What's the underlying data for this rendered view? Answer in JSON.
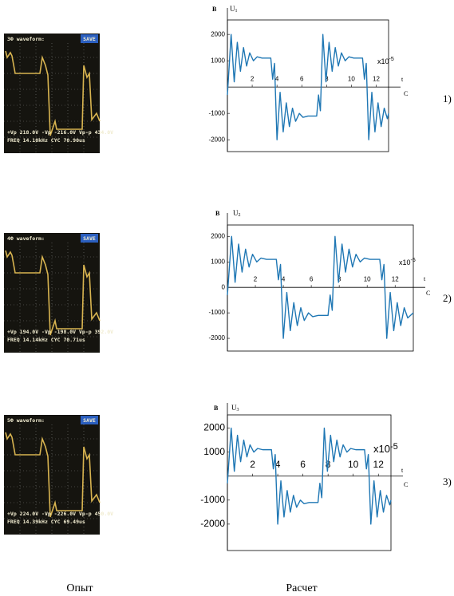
{
  "scopes": [
    {
      "title": "3Ф waveform:",
      "button": "SAVE",
      "line1": "+Vp 218.0V -Vp -216.0V Vp-p 434.0V",
      "line2": "FREQ 14.10kHz CYC 70.90us"
    },
    {
      "title": "4Ф waveform:",
      "button": "SAVE",
      "line1": "+Vp 194.0V -Vp -198.0V Vp-p 392.0V",
      "line2": "FREQ 14.14kHz CYC 70.71us"
    },
    {
      "title": "5Ф waveform:",
      "button": "SAVE",
      "line1": "+Vp 224.0V -Vp -226.0V Vp-p 450.0V",
      "line2": "FREQ 14.39kHz CYC 69.49us"
    }
  ],
  "row_labels": [
    "1)",
    "2)",
    "3)"
  ],
  "captions": {
    "left": "Опыт",
    "right": "Расчет"
  },
  "chart_data": [
    {
      "type": "line",
      "ylabel_unit": "B",
      "ylabel": "U",
      "ylabel_sub": "1",
      "xlabel": "t",
      "xunit": "C",
      "multiplier": "x10",
      "multiplier_exp": "-5",
      "xlim": [
        0,
        13
      ],
      "ylim": [
        -2450,
        2550
      ],
      "xticks": [
        2,
        4,
        6,
        8,
        10,
        12
      ],
      "yticks": [
        -2000,
        -1000,
        1000,
        2000
      ],
      "color": "#1f77b4",
      "x": [
        0,
        0.3,
        0.55,
        0.8,
        1.05,
        1.3,
        1.55,
        1.8,
        2.1,
        2.4,
        2.8,
        3.5,
        3.65,
        3.8,
        4.0,
        4.25,
        4.5,
        4.75,
        5.0,
        5.25,
        5.5,
        5.8,
        6.1,
        6.5,
        7.2,
        7.35,
        7.5,
        7.7,
        7.95,
        8.2,
        8.45,
        8.7,
        8.95,
        9.2,
        9.5,
        9.8,
        10.2,
        10.9,
        11.05,
        11.2,
        11.4,
        11.65,
        11.9,
        12.15,
        12.4,
        12.65,
        12.9,
        13.0
      ],
      "values": [
        -300,
        2000,
        200,
        1700,
        600,
        1500,
        800,
        1300,
        1000,
        1150,
        1100,
        1100,
        300,
        900,
        -2000,
        -200,
        -1700,
        -600,
        -1500,
        -800,
        -1300,
        -1000,
        -1150,
        -1100,
        -1100,
        -300,
        -900,
        2000,
        200,
        1700,
        600,
        1500,
        800,
        1300,
        1000,
        1150,
        1100,
        1100,
        300,
        900,
        -2000,
        -200,
        -1700,
        -600,
        -1500,
        -800,
        -1200,
        -1000
      ]
    },
    {
      "type": "line",
      "ylabel_unit": "B",
      "ylabel": "U",
      "ylabel_sub": "2",
      "xlabel": "t",
      "xunit": "C",
      "multiplier": "x10",
      "multiplier_exp": "-5",
      "xlim": [
        0,
        13.3
      ],
      "ylim": [
        -2500,
        2450
      ],
      "xticks": [
        2,
        4,
        6,
        8,
        10,
        12
      ],
      "yticks": [
        -2000,
        -1000,
        0,
        1000,
        2000
      ],
      "color": "#1f77b4",
      "x": [
        0,
        0.3,
        0.55,
        0.8,
        1.05,
        1.3,
        1.55,
        1.8,
        2.1,
        2.4,
        2.8,
        3.5,
        3.65,
        3.8,
        4.0,
        4.25,
        4.5,
        4.75,
        5.0,
        5.25,
        5.5,
        5.8,
        6.1,
        6.5,
        7.2,
        7.35,
        7.5,
        7.7,
        7.95,
        8.2,
        8.45,
        8.7,
        8.95,
        9.2,
        9.5,
        9.8,
        10.2,
        10.9,
        11.05,
        11.2,
        11.4,
        11.65,
        11.9,
        12.15,
        12.4,
        12.65,
        12.9,
        13.3
      ],
      "values": [
        -300,
        2000,
        200,
        1700,
        600,
        1500,
        800,
        1300,
        1000,
        1150,
        1100,
        1100,
        300,
        900,
        -2000,
        -200,
        -1700,
        -600,
        -1500,
        -800,
        -1300,
        -1000,
        -1150,
        -1100,
        -1100,
        -300,
        -900,
        2000,
        200,
        1700,
        600,
        1500,
        800,
        1300,
        1000,
        1150,
        1100,
        1100,
        300,
        900,
        -2000,
        -200,
        -1700,
        -600,
        -1500,
        -800,
        -1200,
        -1000
      ]
    },
    {
      "type": "line",
      "ylabel_unit": "B",
      "ylabel": "U",
      "ylabel_sub": "3",
      "xlabel": "t",
      "xunit": "C",
      "multiplier": "x10",
      "multiplier_exp": "-5",
      "xlim": [
        0,
        13
      ],
      "ylim": [
        -3100,
        2550
      ],
      "xticks": [
        2,
        4,
        6,
        8,
        10,
        12
      ],
      "yticks": [
        -2000,
        -1000,
        1000,
        2000
      ],
      "color": "#1f77b4",
      "x": [
        0,
        0.3,
        0.55,
        0.8,
        1.05,
        1.3,
        1.55,
        1.8,
        2.1,
        2.4,
        2.8,
        3.5,
        3.65,
        3.8,
        4.0,
        4.25,
        4.5,
        4.75,
        5.0,
        5.25,
        5.5,
        5.8,
        6.1,
        6.5,
        7.2,
        7.35,
        7.5,
        7.7,
        7.95,
        8.2,
        8.45,
        8.7,
        8.95,
        9.2,
        9.5,
        9.8,
        10.2,
        10.9,
        11.05,
        11.2,
        11.4,
        11.65,
        11.9,
        12.15,
        12.4,
        12.65,
        12.9,
        13.0
      ],
      "values": [
        -300,
        2000,
        200,
        1700,
        600,
        1500,
        800,
        1300,
        1000,
        1150,
        1100,
        1100,
        300,
        900,
        -2000,
        -200,
        -1700,
        -600,
        -1500,
        -800,
        -1300,
        -1000,
        -1150,
        -1100,
        -1100,
        -300,
        -900,
        2000,
        200,
        1700,
        600,
        1500,
        800,
        1300,
        1000,
        1150,
        1100,
        1100,
        300,
        900,
        -2000,
        -200,
        -1700,
        -600,
        -1500,
        -800,
        -1200,
        -1000
      ]
    }
  ]
}
